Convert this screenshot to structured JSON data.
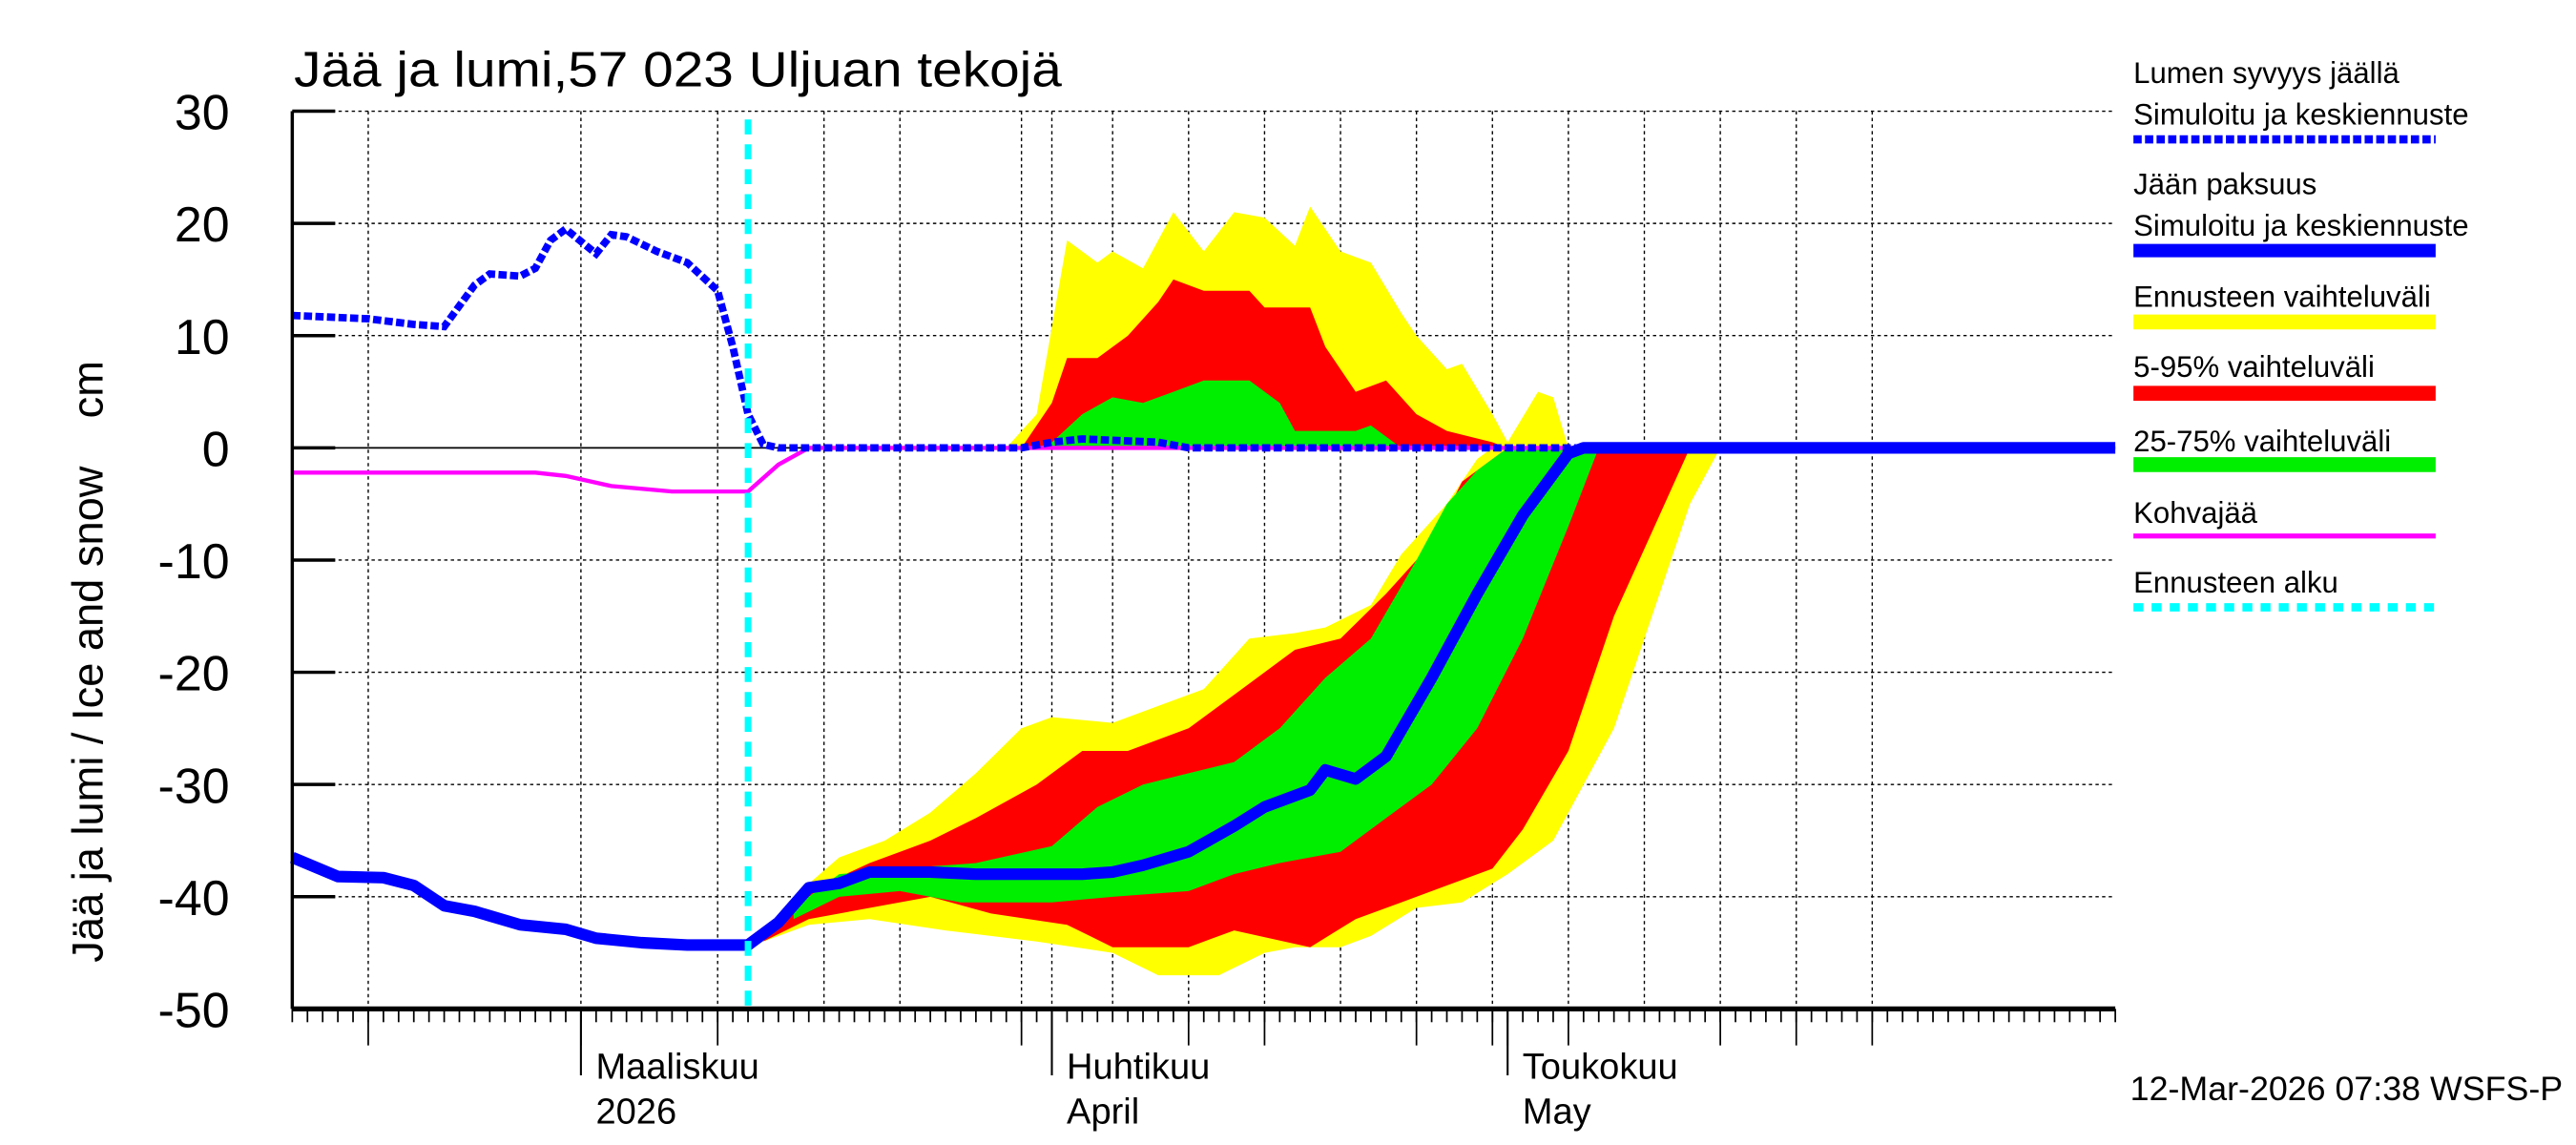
{
  "chart_data": {
    "type": "area",
    "title": "Jää ja lumi,57 023 Uljuan tekojä",
    "ylabel": "Jää ja lumi / Ice and snow    cm",
    "ylim": [
      -50,
      30
    ],
    "yticks": [
      30,
      20,
      10,
      0,
      -10,
      -20,
      -30,
      -40,
      -50
    ],
    "xlim": [
      "2026-02-10",
      "2026-06-10"
    ],
    "month_labels": [
      {
        "date": "2026-03-01",
        "line1": "Maaliskuu",
        "line2": "2026"
      },
      {
        "date": "2026-04-01",
        "line1": "Huhtikuu",
        "line2": "April"
      },
      {
        "date": "2026-05-01",
        "line1": "Toukokuu",
        "line2": "May"
      }
    ],
    "grid": true,
    "legend_placement": "right",
    "forecast_start": "2026-03-12",
    "colors": {
      "snow": "#0000ff",
      "ice": "#0000ff",
      "range_full": "#ffff00",
      "range_5_95": "#ff0000",
      "range_25_75": "#00ee00",
      "slush": "#ff00ff",
      "forecast_start": "#00ffff"
    },
    "series": {
      "snow_depth": [
        [
          "2026-02-10",
          11.8
        ],
        [
          "2026-02-15",
          11.5
        ],
        [
          "2026-02-18",
          11
        ],
        [
          "2026-02-20",
          10.8
        ],
        [
          "2026-02-22",
          14.5
        ],
        [
          "2026-02-23",
          15.5
        ],
        [
          "2026-02-25",
          15.3
        ],
        [
          "2026-02-26",
          16
        ],
        [
          "2026-02-27",
          18.5
        ],
        [
          "2026-02-28",
          19.5
        ],
        [
          "2026-03-02",
          17.3
        ],
        [
          "2026-03-03",
          19
        ],
        [
          "2026-03-04",
          18.8
        ],
        [
          "2026-03-06",
          17.5
        ],
        [
          "2026-03-08",
          16.5
        ],
        [
          "2026-03-10",
          14
        ],
        [
          "2026-03-11",
          9
        ],
        [
          "2026-03-12",
          3
        ],
        [
          "2026-03-13",
          0.3
        ],
        [
          "2026-03-14",
          0
        ],
        [
          "2026-03-30",
          0
        ],
        [
          "2026-04-01",
          0.5
        ],
        [
          "2026-04-03",
          0.8
        ],
        [
          "2026-04-08",
          0.5
        ],
        [
          "2026-04-10",
          0
        ],
        [
          "2026-06-10",
          0
        ]
      ],
      "ice_thickness": [
        [
          "2026-02-10",
          -36.5
        ],
        [
          "2026-02-13",
          -38.2
        ],
        [
          "2026-02-16",
          -38.3
        ],
        [
          "2026-02-18",
          -39
        ],
        [
          "2026-02-20",
          -40.8
        ],
        [
          "2026-02-22",
          -41.3
        ],
        [
          "2026-02-25",
          -42.5
        ],
        [
          "2026-02-28",
          -42.9
        ],
        [
          "2026-03-02",
          -43.7
        ],
        [
          "2026-03-05",
          -44.1
        ],
        [
          "2026-03-08",
          -44.3
        ],
        [
          "2026-03-12",
          -44.3
        ],
        [
          "2026-03-14",
          -42.3
        ],
        [
          "2026-03-16",
          -39.2
        ],
        [
          "2026-03-18",
          -38.8
        ],
        [
          "2026-03-20",
          -37.8
        ],
        [
          "2026-03-24",
          -37.8
        ],
        [
          "2026-03-27",
          -38
        ],
        [
          "2026-04-01",
          -38
        ],
        [
          "2026-04-03",
          -38
        ],
        [
          "2026-04-05",
          -37.8
        ],
        [
          "2026-04-07",
          -37.2
        ],
        [
          "2026-04-10",
          -36
        ],
        [
          "2026-04-13",
          -33.7
        ],
        [
          "2026-04-15",
          -32
        ],
        [
          "2026-04-18",
          -30.5
        ],
        [
          "2026-04-19",
          -28.7
        ],
        [
          "2026-04-21",
          -29.5
        ],
        [
          "2026-04-23",
          -27.5
        ],
        [
          "2026-04-26",
          -20.5
        ],
        [
          "2026-04-29",
          -13
        ],
        [
          "2026-05-02",
          -6
        ],
        [
          "2026-05-05",
          -0.5
        ],
        [
          "2026-05-06",
          0
        ],
        [
          "2026-06-10",
          0
        ]
      ],
      "slush_ice": [
        [
          "2026-02-10",
          -2.2
        ],
        [
          "2026-02-26",
          -2.2
        ],
        [
          "2026-02-28",
          -2.5
        ],
        [
          "2026-03-03",
          -3.4
        ],
        [
          "2026-03-07",
          -3.9
        ],
        [
          "2026-03-12",
          -3.9
        ],
        [
          "2026-03-14",
          -1.5
        ],
        [
          "2026-03-16",
          0
        ],
        [
          "2026-06-10",
          0
        ]
      ],
      "snow_range_full_upper": [
        [
          "2026-03-29",
          0
        ],
        [
          "2026-03-31",
          3
        ],
        [
          "2026-04-02",
          18.5
        ],
        [
          "2026-04-04",
          16.5
        ],
        [
          "2026-04-05",
          17.5
        ],
        [
          "2026-04-07",
          16
        ],
        [
          "2026-04-09",
          21
        ],
        [
          "2026-04-11",
          17.5
        ],
        [
          "2026-04-13",
          21
        ],
        [
          "2026-04-15",
          20.5
        ],
        [
          "2026-04-17",
          18
        ],
        [
          "2026-04-18",
          21.5
        ],
        [
          "2026-04-20",
          17.5
        ],
        [
          "2026-04-22",
          16.5
        ],
        [
          "2026-04-24",
          12
        ],
        [
          "2026-04-25",
          10
        ],
        [
          "2026-04-27",
          7
        ],
        [
          "2026-04-28",
          7.5
        ],
        [
          "2026-04-30",
          3
        ],
        [
          "2026-05-01",
          0.5
        ],
        [
          "2026-05-03",
          5
        ],
        [
          "2026-05-04",
          4.5
        ],
        [
          "2026-05-05",
          0
        ]
      ],
      "snow_range_5_95_upper": [
        [
          "2026-03-30",
          0
        ],
        [
          "2026-04-01",
          4
        ],
        [
          "2026-04-02",
          8
        ],
        [
          "2026-04-04",
          8
        ],
        [
          "2026-04-06",
          10
        ],
        [
          "2026-04-08",
          13
        ],
        [
          "2026-04-09",
          15
        ],
        [
          "2026-04-11",
          14
        ],
        [
          "2026-04-14",
          14
        ],
        [
          "2026-04-15",
          12.5
        ],
        [
          "2026-04-18",
          12.5
        ],
        [
          "2026-04-19",
          9
        ],
        [
          "2026-04-21",
          5
        ],
        [
          "2026-04-23",
          6
        ],
        [
          "2026-04-25",
          3
        ],
        [
          "2026-04-27",
          1.5
        ],
        [
          "2026-04-30",
          0.5
        ],
        [
          "2026-05-01",
          0
        ]
      ],
      "snow_range_25_75_upper": [
        [
          "2026-03-31",
          0
        ],
        [
          "2026-04-01",
          0.5
        ],
        [
          "2026-04-03",
          3
        ],
        [
          "2026-04-05",
          4.5
        ],
        [
          "2026-04-07",
          4
        ],
        [
          "2026-04-09",
          5
        ],
        [
          "2026-04-11",
          6
        ],
        [
          "2026-04-14",
          6
        ],
        [
          "2026-04-16",
          4
        ],
        [
          "2026-04-17",
          1.5
        ],
        [
          "2026-04-21",
          1.5
        ],
        [
          "2026-04-22",
          2
        ],
        [
          "2026-04-24",
          0
        ]
      ],
      "ice_range_full": {
        "upper": [
          [
            "2026-03-13",
            -44
          ],
          [
            "2026-03-15",
            -40
          ],
          [
            "2026-03-18",
            -36.5
          ],
          [
            "2026-03-21",
            -35
          ],
          [
            "2026-03-24",
            -32.5
          ],
          [
            "2026-03-27",
            -29
          ],
          [
            "2026-03-30",
            -25
          ],
          [
            "2026-04-01",
            -24
          ],
          [
            "2026-04-05",
            -24.5
          ],
          [
            "2026-04-08",
            -23
          ],
          [
            "2026-04-11",
            -21.5
          ],
          [
            "2026-04-14",
            -17
          ],
          [
            "2026-04-17",
            -16.5
          ],
          [
            "2026-04-19",
            -16
          ],
          [
            "2026-04-22",
            -14
          ],
          [
            "2026-04-24",
            -9.5
          ],
          [
            "2026-04-27",
            -5
          ],
          [
            "2026-04-29",
            -1
          ],
          [
            "2026-04-30",
            0
          ]
        ],
        "lower": [
          [
            "2026-03-13",
            -44
          ],
          [
            "2026-03-16",
            -42.5
          ],
          [
            "2026-03-20",
            -42
          ],
          [
            "2026-03-25",
            -43
          ],
          [
            "2026-03-31",
            -44
          ],
          [
            "2026-04-05",
            -45
          ],
          [
            "2026-04-08",
            -47
          ],
          [
            "2026-04-12",
            -47
          ],
          [
            "2026-04-15",
            -45
          ],
          [
            "2026-04-17",
            -44.5
          ],
          [
            "2026-04-20",
            -44.5
          ],
          [
            "2026-04-22",
            -43.5
          ],
          [
            "2026-04-25",
            -41
          ],
          [
            "2026-04-28",
            -40.5
          ],
          [
            "2026-05-01",
            -38
          ],
          [
            "2026-05-04",
            -35
          ],
          [
            "2026-05-08",
            -25
          ],
          [
            "2026-05-11",
            -13
          ],
          [
            "2026-05-13",
            -5
          ],
          [
            "2026-05-15",
            0
          ]
        ]
      },
      "ice_range_5_95": {
        "upper": [
          [
            "2026-03-13",
            -44
          ],
          [
            "2026-03-16",
            -39.5
          ],
          [
            "2026-03-20",
            -37
          ],
          [
            "2026-03-24",
            -35
          ],
          [
            "2026-03-27",
            -33
          ],
          [
            "2026-03-31",
            -30
          ],
          [
            "2026-04-03",
            -27
          ],
          [
            "2026-04-06",
            -27
          ],
          [
            "2026-04-10",
            -25
          ],
          [
            "2026-04-14",
            -21
          ],
          [
            "2026-04-17",
            -18
          ],
          [
            "2026-04-20",
            -17
          ],
          [
            "2026-04-23",
            -13
          ],
          [
            "2026-04-26",
            -8.5
          ],
          [
            "2026-04-28",
            -3
          ],
          [
            "2026-05-01",
            0
          ]
        ],
        "lower": [
          [
            "2026-03-13",
            -44
          ],
          [
            "2026-03-16",
            -42
          ],
          [
            "2026-03-20",
            -41
          ],
          [
            "2026-03-24",
            -40
          ],
          [
            "2026-03-28",
            -41.5
          ],
          [
            "2026-04-02",
            -42.5
          ],
          [
            "2026-04-05",
            -44.5
          ],
          [
            "2026-04-10",
            -44.5
          ],
          [
            "2026-04-13",
            -43
          ],
          [
            "2026-04-18",
            -44.5
          ],
          [
            "2026-04-21",
            -42
          ],
          [
            "2026-04-24",
            -40.5
          ],
          [
            "2026-04-27",
            -39
          ],
          [
            "2026-04-30",
            -37.5
          ],
          [
            "2026-05-02",
            -34
          ],
          [
            "2026-05-05",
            -27
          ],
          [
            "2026-05-08",
            -15
          ],
          [
            "2026-05-11",
            -6
          ],
          [
            "2026-05-13",
            0
          ]
        ]
      },
      "ice_range_25_75": {
        "upper": [
          [
            "2026-03-15",
            -41
          ],
          [
            "2026-03-18",
            -38
          ],
          [
            "2026-03-22",
            -37.5
          ],
          [
            "2026-03-27",
            -37
          ],
          [
            "2026-04-01",
            -35.5
          ],
          [
            "2026-04-04",
            -32
          ],
          [
            "2026-04-07",
            -30
          ],
          [
            "2026-04-10",
            -29
          ],
          [
            "2026-04-13",
            -28
          ],
          [
            "2026-04-16",
            -25
          ],
          [
            "2026-04-19",
            -20.5
          ],
          [
            "2026-04-22",
            -17
          ],
          [
            "2026-04-25",
            -10
          ],
          [
            "2026-04-27",
            -5
          ],
          [
            "2026-04-29",
            -2
          ],
          [
            "2026-05-01",
            0
          ]
        ],
        "lower": [
          [
            "2026-03-15",
            -42
          ],
          [
            "2026-03-18",
            -40
          ],
          [
            "2026-03-22",
            -39.5
          ],
          [
            "2026-03-26",
            -40.5
          ],
          [
            "2026-04-01",
            -40.5
          ],
          [
            "2026-04-05",
            -40
          ],
          [
            "2026-04-10",
            -39.5
          ],
          [
            "2026-04-13",
            -38
          ],
          [
            "2026-04-16",
            -37
          ],
          [
            "2026-04-20",
            -36
          ],
          [
            "2026-04-23",
            -33
          ],
          [
            "2026-04-26",
            -30
          ],
          [
            "2026-04-29",
            -25
          ],
          [
            "2026-05-02",
            -17
          ],
          [
            "2026-05-05",
            -7
          ],
          [
            "2026-05-07",
            0
          ]
        ]
      }
    },
    "legend": [
      {
        "line1": "Lumen syvyys jäällä",
        "line2": "Simuloitu ja keskiennuste",
        "style": "dotted-blue"
      },
      {
        "line1": "Jään paksuus",
        "line2": "Simuloitu ja keskiennuste",
        "style": "solid-blue"
      },
      {
        "line1": "Ennusteen vaihteluväli",
        "style": "yellow-bar"
      },
      {
        "line1": "5-95% vaihteluväli",
        "style": "red-bar"
      },
      {
        "line1": "25-75% vaihteluväli",
        "style": "green-bar"
      },
      {
        "line1": "Kohvajää",
        "style": "magenta-line"
      },
      {
        "line1": "Ennusteen alku",
        "style": "cyan-dotted"
      }
    ]
  },
  "footer": {
    "timestamp": "12-Mar-2026 07:38 WSFS-P"
  }
}
